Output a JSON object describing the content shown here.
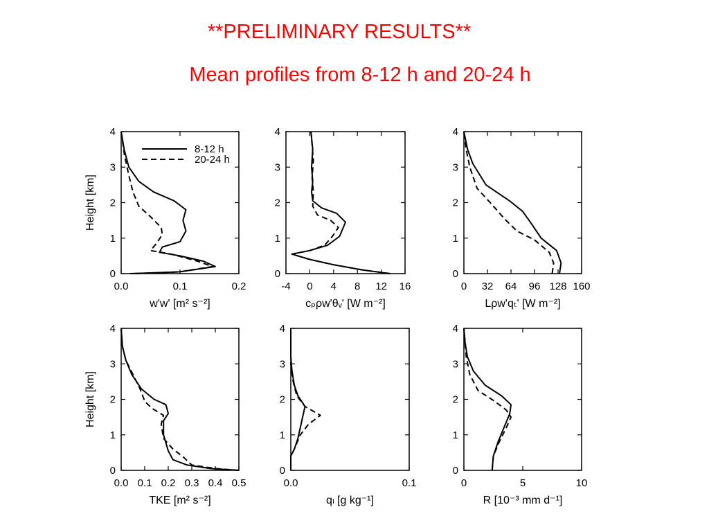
{
  "header": {
    "title": "**PRELIMINARY RESULTS**",
    "subtitle": "Mean profiles from 8-12 h and 20-24 h"
  },
  "colors": {
    "title": "#ff0000",
    "line": "#000000"
  },
  "chart_data": [
    {
      "type": "line",
      "xlabel": "w'w' [m² s⁻²]",
      "ylabel": "Height [km]",
      "xlim": [
        0,
        0.2
      ],
      "ylim": [
        0,
        4
      ],
      "xticks": [
        "0.0",
        "0.1",
        "0.2"
      ],
      "yticks": [
        "0",
        "1",
        "2",
        "3",
        "4"
      ],
      "legend": {
        "position": "top-right",
        "entries": [
          "8-12 h",
          "20-24 h"
        ]
      },
      "series": [
        {
          "name": "8-12 h",
          "style": "solid",
          "points": [
            [
              0.015,
              0
            ],
            [
              0.1,
              0.05
            ],
            [
              0.16,
              0.2
            ],
            [
              0.14,
              0.35
            ],
            [
              0.1,
              0.5
            ],
            [
              0.065,
              0.6
            ],
            [
              0.07,
              0.75
            ],
            [
              0.1,
              0.9
            ],
            [
              0.11,
              1.2
            ],
            [
              0.105,
              1.5
            ],
            [
              0.11,
              1.8
            ],
            [
              0.09,
              2.05
            ],
            [
              0.055,
              2.3
            ],
            [
              0.03,
              2.6
            ],
            [
              0.013,
              3.0
            ],
            [
              0.005,
              3.5
            ],
            [
              0,
              4
            ]
          ]
        },
        {
          "name": "20-24 h",
          "style": "dashed",
          "points": [
            [
              0.025,
              0
            ],
            [
              0.1,
              0.05
            ],
            [
              0.155,
              0.2
            ],
            [
              0.13,
              0.35
            ],
            [
              0.085,
              0.55
            ],
            [
              0.05,
              0.65
            ],
            [
              0.06,
              0.85
            ],
            [
              0.07,
              1.1
            ],
            [
              0.068,
              1.3
            ],
            [
              0.05,
              1.6
            ],
            [
              0.03,
              1.9
            ],
            [
              0.02,
              2.3
            ],
            [
              0.014,
              2.7
            ],
            [
              0.006,
              3.3
            ],
            [
              0,
              4
            ]
          ]
        }
      ]
    },
    {
      "type": "line",
      "xlabel": "cₚρw'θᵥ' [W m⁻²]",
      "ylabel": "",
      "xlim": [
        -4,
        16
      ],
      "ylim": [
        0,
        4
      ],
      "xticks": [
        "-4",
        "0",
        "4",
        "8",
        "12",
        "16"
      ],
      "yticks": [
        "0",
        "1",
        "2",
        "3",
        "4"
      ],
      "series": [
        {
          "name": "",
          "style": "solid",
          "points": [
            [
              13.5,
              0
            ],
            [
              9,
              0.1
            ],
            [
              4,
              0.25
            ],
            [
              0,
              0.4
            ],
            [
              -3,
              0.55
            ],
            [
              0,
              0.65
            ],
            [
              3,
              0.8
            ],
            [
              5,
              1.05
            ],
            [
              6,
              1.45
            ],
            [
              4.5,
              1.7
            ],
            [
              2,
              1.85
            ],
            [
              0.5,
              2.05
            ],
            [
              0.3,
              2.3
            ],
            [
              0.5,
              2.6
            ],
            [
              0.3,
              3
            ],
            [
              0.5,
              3.5
            ],
            [
              0.2,
              4
            ]
          ]
        },
        {
          "name": "",
          "style": "dashed",
          "points": [
            [
              13.5,
              0
            ],
            [
              9,
              0.1
            ],
            [
              4,
              0.25
            ],
            [
              0,
              0.4
            ],
            [
              -3,
              0.55
            ],
            [
              0,
              0.65
            ],
            [
              2.5,
              0.8
            ],
            [
              3.8,
              1.05
            ],
            [
              4.8,
              1.3
            ],
            [
              3.5,
              1.5
            ],
            [
              1.3,
              1.65
            ],
            [
              0.5,
              1.9
            ],
            [
              0.6,
              2.3
            ],
            [
              0.4,
              2.7
            ],
            [
              0.6,
              3.2
            ],
            [
              0.2,
              4
            ]
          ]
        }
      ]
    },
    {
      "type": "line",
      "xlabel": "Lρw'qₜ' [W m⁻²]",
      "ylabel": "",
      "xlim": [
        0,
        160
      ],
      "ylim": [
        0,
        4
      ],
      "xticks": [
        "0",
        "32",
        "64",
        "96",
        "128",
        "160"
      ],
      "yticks": [
        "0",
        "1",
        "2",
        "3",
        "4"
      ],
      "series": [
        {
          "name": "",
          "style": "solid",
          "points": [
            [
              130,
              0
            ],
            [
              132,
              0.3
            ],
            [
              126,
              0.65
            ],
            [
              105,
              1.0
            ],
            [
              92,
              1.4
            ],
            [
              80,
              1.75
            ],
            [
              62,
              2.05
            ],
            [
              30,
              2.5
            ],
            [
              12,
              3.1
            ],
            [
              5,
              3.5
            ],
            [
              0,
              4
            ]
          ]
        },
        {
          "name": "",
          "style": "dashed",
          "points": [
            [
              120,
              0
            ],
            [
              122,
              0.3
            ],
            [
              116,
              0.6
            ],
            [
              96,
              0.95
            ],
            [
              72,
              1.2
            ],
            [
              55,
              1.55
            ],
            [
              38,
              1.95
            ],
            [
              18,
              2.4
            ],
            [
              8,
              3.0
            ],
            [
              3,
              3.5
            ],
            [
              0,
              4
            ]
          ]
        }
      ]
    },
    {
      "type": "line",
      "xlabel": "TKE [m² s⁻²]",
      "ylabel": "Height [km]",
      "xlim": [
        0,
        0.5
      ],
      "ylim": [
        0,
        4
      ],
      "xticks": [
        "0.0",
        "0.1",
        "0.2",
        "0.3",
        "0.4",
        "0.5"
      ],
      "yticks": [
        "0",
        "1",
        "2",
        "3",
        "4"
      ],
      "series": [
        {
          "name": "",
          "style": "solid",
          "points": [
            [
              0.5,
              0
            ],
            [
              0.38,
              0.05
            ],
            [
              0.28,
              0.15
            ],
            [
              0.22,
              0.3
            ],
            [
              0.2,
              0.55
            ],
            [
              0.18,
              1.0
            ],
            [
              0.18,
              1.4
            ],
            [
              0.2,
              1.6
            ],
            [
              0.19,
              1.85
            ],
            [
              0.14,
              2.0
            ],
            [
              0.085,
              2.3
            ],
            [
              0.045,
              2.7
            ],
            [
              0.02,
              3.1
            ],
            [
              0.005,
              3.5
            ],
            [
              0,
              4
            ]
          ]
        },
        {
          "name": "",
          "style": "dashed",
          "points": [
            [
              0.5,
              0
            ],
            [
              0.4,
              0.05
            ],
            [
              0.3,
              0.15
            ],
            [
              0.26,
              0.4
            ],
            [
              0.22,
              0.6
            ],
            [
              0.18,
              0.9
            ],
            [
              0.17,
              1.3
            ],
            [
              0.18,
              1.55
            ],
            [
              0.13,
              1.75
            ],
            [
              0.1,
              1.95
            ],
            [
              0.08,
              2.3
            ],
            [
              0.05,
              2.7
            ],
            [
              0.02,
              3.1
            ],
            [
              0.005,
              3.5
            ],
            [
              0,
              4
            ]
          ]
        }
      ]
    },
    {
      "type": "line",
      "xlabel": "qₗ [g kg⁻¹]",
      "ylabel": "",
      "xlim": [
        0,
        0.1
      ],
      "ylim": [
        0,
        4
      ],
      "xticks": [
        "0.0",
        "0.1"
      ],
      "yticks": [
        "0",
        "1",
        "2",
        "3",
        "4"
      ],
      "series": [
        {
          "name": "",
          "style": "solid",
          "points": [
            [
              0,
              0
            ],
            [
              0,
              0.4
            ],
            [
              0.003,
              0.6
            ],
            [
              0.006,
              0.9
            ],
            [
              0.008,
              1.2
            ],
            [
              0.01,
              1.5
            ],
            [
              0.012,
              1.8
            ],
            [
              0.01,
              1.9
            ],
            [
              0.006,
              2.1
            ],
            [
              0.003,
              2.4
            ],
            [
              0.001,
              2.8
            ],
            [
              0,
              3.2
            ],
            [
              0,
              4
            ]
          ]
        },
        {
          "name": "",
          "style": "dashed",
          "points": [
            [
              0,
              0
            ],
            [
              0,
              0.4
            ],
            [
              0.003,
              0.6
            ],
            [
              0.008,
              1.0
            ],
            [
              0.015,
              1.3
            ],
            [
              0.025,
              1.55
            ],
            [
              0.012,
              1.8
            ],
            [
              0.005,
              2.1
            ],
            [
              0.002,
              2.5
            ],
            [
              0,
              3
            ],
            [
              0,
              4
            ]
          ]
        }
      ]
    },
    {
      "type": "line",
      "xlabel": "R [10⁻³ mm d⁻¹]",
      "ylabel": "",
      "xlim": [
        0,
        10
      ],
      "ylim": [
        0,
        4
      ],
      "xticks": [
        "0",
        "5",
        "10"
      ],
      "yticks": [
        "0",
        "1",
        "2",
        "3",
        "4"
      ],
      "series": [
        {
          "name": "",
          "style": "solid",
          "points": [
            [
              2.4,
              0
            ],
            [
              2.5,
              0.4
            ],
            [
              2.9,
              0.8
            ],
            [
              3.4,
              1.2
            ],
            [
              3.9,
              1.6
            ],
            [
              4,
              1.85
            ],
            [
              3.2,
              2.1
            ],
            [
              1.8,
              2.4
            ],
            [
              0.8,
              2.8
            ],
            [
              0.3,
              3.2
            ],
            [
              0.1,
              3.6
            ],
            [
              0,
              4
            ]
          ]
        },
        {
          "name": "",
          "style": "dashed",
          "points": [
            [
              2.4,
              0
            ],
            [
              2.5,
              0.4
            ],
            [
              3,
              0.8
            ],
            [
              3.6,
              1.2
            ],
            [
              4,
              1.5
            ],
            [
              3.6,
              1.7
            ],
            [
              2.6,
              1.95
            ],
            [
              1.2,
              2.25
            ],
            [
              0.5,
              2.7
            ],
            [
              0.2,
              3.2
            ],
            [
              0,
              4
            ]
          ]
        }
      ]
    }
  ]
}
